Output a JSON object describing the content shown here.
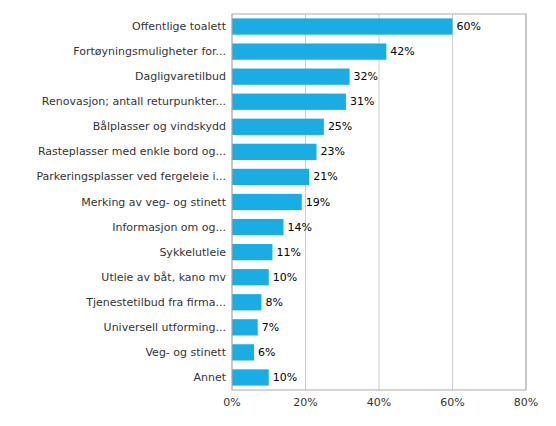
{
  "chart_data": {
    "type": "bar",
    "orientation": "horizontal",
    "categories": [
      "Annet",
      "Veg- og stinett",
      "Universell utforming...",
      "Tjenestetilbud fra firma...",
      "Utleie av båt, kano mv",
      "Sykkelutleie",
      "Informasjon om og...",
      "Merking av veg- og stinett",
      "Parkeringsplasser ved fergeleie i...",
      "Rasteplasser med enkle bord og...",
      "Bålplasser og vindskydd",
      "Renovasjon; antall returpunkter...",
      "Dagligvaretilbud",
      "Fortøyningsmuligheter for...",
      "Offentlige toalett"
    ],
    "values": [
      10,
      6,
      7,
      8,
      10,
      11,
      14,
      19,
      21,
      23,
      25,
      31,
      32,
      42,
      60
    ],
    "value_labels": [
      "10%",
      "6%",
      "7%",
      "8%",
      "10%",
      "11%",
      "14%",
      "19%",
      "21%",
      "23%",
      "25%",
      "31%",
      "32%",
      "42%",
      "60%"
    ],
    "data_labels": true,
    "color": "#1AADE3",
    "xlim": [
      0,
      80
    ],
    "xticks": [
      {
        "value": 0,
        "label": "0%"
      },
      {
        "value": 20,
        "label": "20%"
      },
      {
        "value": 40,
        "label": "40%"
      },
      {
        "value": 60,
        "label": "60%"
      },
      {
        "value": 80,
        "label": "80%"
      }
    ],
    "grid": true
  }
}
